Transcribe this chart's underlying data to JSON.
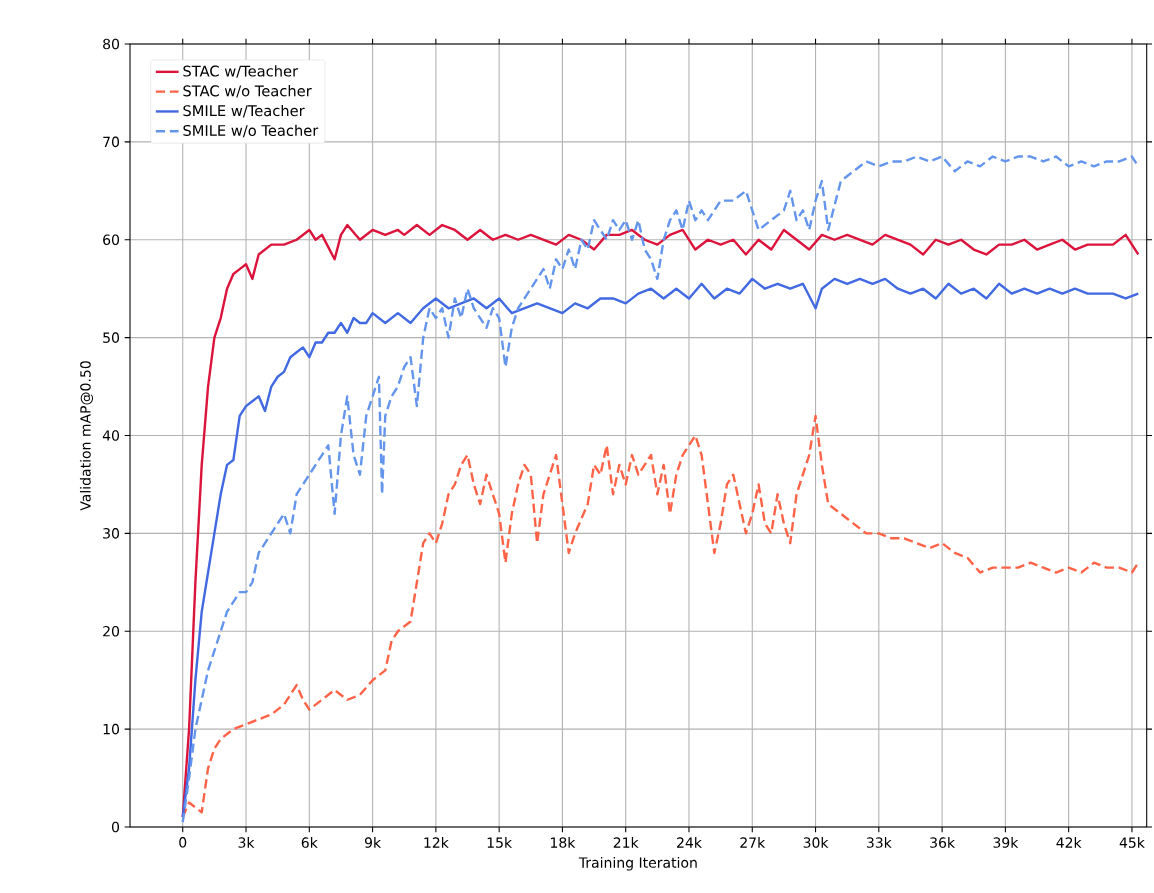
{
  "chart_data": {
    "type": "line",
    "xlabel": "Training Iteration",
    "ylabel": "Validation mAP@0.50",
    "xlim": [
      -2500,
      45700
    ],
    "ylim": [
      0,
      80
    ],
    "xticks": [
      {
        "value": 0,
        "label": "0"
      },
      {
        "value": 3000,
        "label": "3k"
      },
      {
        "value": 6000,
        "label": "6k"
      },
      {
        "value": 9000,
        "label": "9k"
      },
      {
        "value": 12000,
        "label": "12k"
      },
      {
        "value": 15000,
        "label": "15k"
      },
      {
        "value": 18000,
        "label": "18k"
      },
      {
        "value": 21000,
        "label": "21k"
      },
      {
        "value": 24000,
        "label": "24k"
      },
      {
        "value": 27000,
        "label": "27k"
      },
      {
        "value": 30000,
        "label": "30k"
      },
      {
        "value": 33000,
        "label": "33k"
      },
      {
        "value": 36000,
        "label": "36k"
      },
      {
        "value": 39000,
        "label": "39k"
      },
      {
        "value": 42000,
        "label": "42k"
      },
      {
        "value": 45000,
        "label": "45k"
      }
    ],
    "yticks": [
      0,
      10,
      20,
      30,
      40,
      50,
      60,
      70,
      80
    ],
    "grid": true,
    "legend": "top left",
    "series": [
      {
        "name": "STAC w/Teacher",
        "color": "#dc143c",
        "line_style": "solid",
        "x": [
          0,
          300,
          600,
          900,
          1200,
          1500,
          1800,
          2100,
          2400,
          2700,
          3000,
          3300,
          3600,
          4200,
          4800,
          5400,
          6000,
          6300,
          6600,
          7200,
          7500,
          7800,
          8400,
          9000,
          9600,
          10200,
          10500,
          11100,
          11700,
          12300,
          12900,
          13500,
          14100,
          14700,
          15300,
          15900,
          16500,
          17100,
          17700,
          18300,
          18900,
          19500,
          20100,
          20700,
          21300,
          21900,
          22500,
          23100,
          23700,
          24300,
          24900,
          25500,
          26100,
          26700,
          27300,
          27900,
          28500,
          29100,
          29700,
          30300,
          30900,
          31500,
          32100,
          32700,
          33300,
          33900,
          34500,
          35100,
          35700,
          36300,
          36900,
          37500,
          38100,
          38700,
          39300,
          39900,
          40500,
          41100,
          41700,
          42300,
          42900,
          43500,
          44100,
          44700,
          45300
        ],
        "values": [
          1,
          10,
          25,
          37,
          45,
          50,
          52,
          55,
          56.5,
          57,
          57.5,
          56,
          58.5,
          59.5,
          59.5,
          60,
          61,
          60,
          60.5,
          58,
          60.5,
          61.5,
          60,
          61,
          60.5,
          61,
          60.5,
          61.5,
          60.5,
          61.5,
          61,
          60,
          61,
          60,
          60.5,
          60,
          60.5,
          60,
          59.5,
          60.5,
          60,
          59,
          60.5,
          60.5,
          61,
          60,
          59.5,
          60.5,
          61,
          59,
          60,
          59.5,
          60,
          58.5,
          60,
          59,
          61,
          60,
          59,
          60.5,
          60,
          60.5,
          60,
          59.5,
          60.5,
          60,
          59.5,
          58.5,
          60,
          59.5,
          60,
          59,
          58.5,
          59.5,
          59.5,
          60,
          59,
          59.5,
          60,
          59,
          59.5,
          59.5,
          59.5,
          60.5,
          58.5
        ]
      },
      {
        "name": "STAC w/o Teacher",
        "color": "#ff6347",
        "line_style": "dashed",
        "x": [
          0,
          300,
          600,
          900,
          1200,
          1500,
          1800,
          2400,
          3000,
          3600,
          4200,
          4800,
          5400,
          5700,
          6000,
          6600,
          7200,
          7800,
          8400,
          9000,
          9600,
          9900,
          10200,
          10800,
          11100,
          11400,
          11700,
          12000,
          12300,
          12600,
          12900,
          13200,
          13500,
          13800,
          14100,
          14400,
          14700,
          15000,
          15300,
          15600,
          15900,
          16200,
          16500,
          16800,
          17100,
          17400,
          17700,
          18000,
          18300,
          18600,
          19200,
          19500,
          19800,
          20100,
          20400,
          20700,
          21000,
          21300,
          21600,
          22200,
          22500,
          22800,
          23100,
          23400,
          23700,
          24000,
          24300,
          24600,
          24900,
          25200,
          25500,
          25800,
          26100,
          26400,
          26700,
          27000,
          27300,
          27600,
          27900,
          28200,
          28500,
          28800,
          29100,
          29400,
          29700,
          30000,
          30300,
          30600,
          31200,
          31800,
          32400,
          33000,
          33600,
          34200,
          34800,
          35400,
          36000,
          36600,
          37200,
          37800,
          38400,
          39000,
          39600,
          40200,
          40800,
          41400,
          42000,
          42600,
          43200,
          43800,
          44400,
          45000,
          45300
        ],
        "values": [
          1,
          2.5,
          2,
          1.5,
          6,
          8,
          9,
          10,
          10.5,
          11,
          11.5,
          12.5,
          14.5,
          13,
          12,
          13,
          14,
          13,
          13.5,
          15,
          16,
          19,
          20,
          21,
          25,
          29,
          30,
          29,
          31,
          34,
          35,
          37,
          38,
          35,
          33,
          36,
          34,
          32,
          27,
          32,
          35,
          37,
          36,
          29,
          34,
          36,
          38,
          33,
          28,
          30,
          33,
          37,
          36,
          39,
          34,
          37,
          35,
          38,
          36,
          38,
          34,
          37,
          32,
          36,
          38,
          39,
          40,
          38,
          33,
          28,
          31,
          35,
          36,
          33,
          30,
          32,
          35,
          31,
          30,
          34,
          31,
          29,
          34,
          36,
          38,
          42,
          37,
          33,
          32,
          31,
          30,
          30,
          29.5,
          29.5,
          29,
          28.5,
          29,
          28,
          27.5,
          26,
          26.5,
          26.5,
          26.5,
          27,
          26.5,
          26,
          26.5,
          26,
          27,
          26.5,
          26.5,
          26,
          27
        ]
      },
      {
        "name": "SMILE w/Teacher",
        "color": "#4169e1",
        "line_style": "solid",
        "x": [
          0,
          300,
          600,
          900,
          1200,
          1500,
          1800,
          2100,
          2400,
          2700,
          3000,
          3300,
          3600,
          3900,
          4200,
          4500,
          4800,
          5100,
          5400,
          5700,
          6000,
          6300,
          6600,
          6900,
          7200,
          7500,
          7800,
          8100,
          8400,
          8700,
          9000,
          9600,
          10200,
          10800,
          11400,
          12000,
          12600,
          13200,
          13800,
          14400,
          15000,
          15600,
          16200,
          16800,
          17400,
          18000,
          18600,
          19200,
          19800,
          20400,
          21000,
          21600,
          22200,
          22800,
          23400,
          24000,
          24600,
          25200,
          25800,
          26400,
          27000,
          27600,
          28200,
          28800,
          29400,
          30000,
          30300,
          30900,
          31500,
          32100,
          32700,
          33300,
          33900,
          34500,
          35100,
          35700,
          36300,
          36900,
          37500,
          38100,
          38700,
          39300,
          39900,
          40500,
          41100,
          41700,
          42300,
          42900,
          43500,
          44100,
          44700,
          45300
        ],
        "values": [
          1,
          6,
          15,
          22,
          26,
          30,
          34,
          37,
          37.5,
          42,
          43,
          43.5,
          44,
          42.5,
          45,
          46,
          46.5,
          48,
          48.5,
          49,
          48,
          49.5,
          49.5,
          50.5,
          50.5,
          51.5,
          50.5,
          52,
          51.5,
          51.5,
          52.5,
          51.5,
          52.5,
          51.5,
          53,
          54,
          53,
          53.5,
          54,
          53,
          54,
          52.5,
          53,
          53.5,
          53,
          52.5,
          53.5,
          53,
          54,
          54,
          53.5,
          54.5,
          55,
          54,
          55,
          54,
          55.5,
          54,
          55,
          54.5,
          56,
          55,
          55.5,
          55,
          55.5,
          53,
          55,
          56,
          55.5,
          56,
          55.5,
          56,
          55,
          54.5,
          55,
          54,
          55.5,
          54.5,
          55,
          54,
          55.5,
          54.5,
          55,
          54.5,
          55,
          54.5,
          55,
          54.5,
          54.5,
          54.5,
          54,
          54.5
        ]
      },
      {
        "name": "SMILE w/o Teacher",
        "color": "#6495ed",
        "line_style": "dashed",
        "x": [
          0,
          300,
          600,
          900,
          1200,
          1500,
          2100,
          2700,
          3000,
          3300,
          3600,
          4200,
          4800,
          5100,
          5400,
          6000,
          6300,
          6600,
          6900,
          7200,
          7500,
          7800,
          8100,
          8400,
          8700,
          9000,
          9300,
          9450,
          9600,
          9900,
          10200,
          10500,
          10800,
          11100,
          11400,
          11700,
          12000,
          12300,
          12600,
          12900,
          13200,
          13500,
          13800,
          14100,
          14400,
          14700,
          15000,
          15300,
          15600,
          15900,
          16200,
          16500,
          16800,
          17100,
          17400,
          17700,
          18000,
          18300,
          18600,
          18900,
          19200,
          19500,
          19800,
          20100,
          20400,
          20700,
          21000,
          21300,
          21600,
          21900,
          22200,
          22500,
          22800,
          23100,
          23400,
          23700,
          24000,
          24300,
          24600,
          24900,
          25500,
          26100,
          26700,
          27300,
          27900,
          28500,
          28800,
          29100,
          29400,
          29700,
          30000,
          30300,
          30600,
          31200,
          31800,
          32400,
          33000,
          33600,
          34200,
          34800,
          35400,
          36000,
          36600,
          37200,
          37800,
          38400,
          39000,
          39600,
          40200,
          40800,
          41400,
          42000,
          42600,
          43200,
          43800,
          44400,
          45000,
          45300
        ],
        "values": [
          0.5,
          5,
          10,
          13,
          16,
          18,
          22,
          24,
          24,
          25,
          28,
          30,
          32,
          30,
          34,
          36,
          37,
          38,
          39,
          32,
          40,
          44,
          38,
          36,
          42,
          44,
          46,
          34,
          42,
          44,
          45,
          47,
          48,
          43,
          50,
          53,
          52,
          53,
          50,
          54,
          52,
          55,
          53,
          52,
          51,
          53,
          52,
          47,
          51,
          53,
          54,
          55,
          56,
          57,
          55,
          58,
          57,
          59,
          57,
          60,
          59,
          62,
          61,
          60,
          62,
          61,
          62,
          60,
          62,
          59,
          58,
          56,
          60,
          62,
          63,
          61,
          64,
          62,
          63,
          62,
          64,
          64,
          65,
          61,
          62,
          63,
          65,
          62,
          63,
          61,
          64,
          66,
          61,
          66,
          67,
          68,
          67.5,
          68,
          68,
          68.5,
          68,
          68.5,
          67,
          68,
          67.5,
          68.5,
          68,
          68.5,
          68.5,
          68,
          68.5,
          67.5,
          68,
          67.5,
          68,
          68,
          68.5,
          67.5
        ]
      }
    ]
  }
}
